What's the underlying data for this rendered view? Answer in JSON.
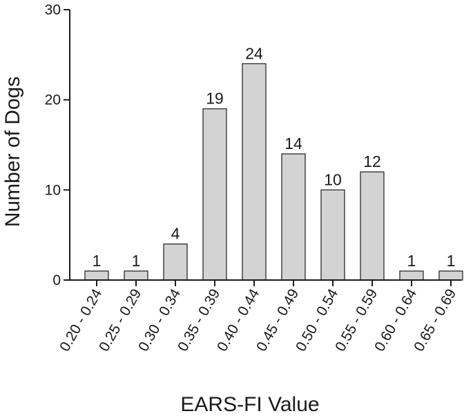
{
  "chart_data": {
    "type": "bar",
    "title": "",
    "xlabel": "EARS-FI Value",
    "ylabel": "Number of Dogs",
    "categories": [
      "0.20 - 0.24",
      "0.25 - 0.29",
      "0.30 - 0.34",
      "0.35 - 0.39",
      "0.40 - 0.44",
      "0.45 - 0.49",
      "0.50 - 0.54",
      "0.55 - 0.59",
      "0.60 - 0.64",
      "0.65 - 0.69"
    ],
    "values": [
      1,
      1,
      4,
      19,
      24,
      14,
      10,
      12,
      1,
      1
    ],
    "data_labels": [
      "1",
      "1",
      "4",
      "19",
      "24",
      "14",
      "10",
      "12",
      "1",
      "1"
    ],
    "ylim": [
      0,
      30
    ],
    "yticks": [
      0,
      10,
      20,
      30
    ],
    "ytick_labels": [
      "0",
      "10",
      "20",
      "30"
    ],
    "grid": false,
    "bar_color": "#d3d3d3",
    "edge_color": "#1a1a1a"
  }
}
